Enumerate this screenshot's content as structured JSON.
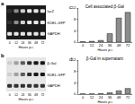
{
  "chart_data": [
    {
      "panel": "c",
      "type": "bar",
      "title": "Cell associated β-Gal",
      "x_label": "Hours p.i.",
      "categories": [
        "0",
        "12",
        "24",
        "36",
        "48",
        "72"
      ],
      "values": [
        0.2,
        0.3,
        0.6,
        3,
        8.5,
        10.5
      ],
      "color": "#8c8c8c",
      "ylim": [
        0,
        12
      ],
      "yticks": [
        0,
        4,
        8,
        12
      ]
    },
    {
      "panel": "d",
      "type": "bar",
      "title": "β-Gal in supernatant",
      "x_label": "Hours p.i.",
      "categories": [
        "0",
        "12",
        "24",
        "36",
        "48",
        "72"
      ],
      "values": [
        0.1,
        0.1,
        0.2,
        0.5,
        1.2,
        2
      ],
      "color": "#8c8c8c",
      "ylim": [
        0,
        12
      ],
      "yticks": [
        0,
        4,
        8,
        12
      ]
    }
  ],
  "gels": [
    {
      "panel": "a",
      "lane_label": "Hours p.i.",
      "lanes": [
        "0",
        "12",
        "24",
        "36",
        "48",
        "72"
      ],
      "rows": [
        {
          "label": "lacZ",
          "intensities": [
            0.1,
            0.5,
            0.8,
            0.9,
            0.9,
            0.9
          ]
        },
        {
          "label": "KDEL-GFP",
          "intensities": [
            0.1,
            0.5,
            0.8,
            0.9,
            0.9,
            0.9
          ]
        },
        {
          "label": "GAPDH",
          "intensities": [
            0.9,
            0.9,
            0.9,
            0.9,
            0.9,
            0.9
          ]
        }
      ]
    },
    {
      "panel": "b",
      "lane_label": "Hours p.i.",
      "lanes": [
        "0",
        "12",
        "24",
        "36",
        "48",
        "72"
      ],
      "rows": [
        {
          "label": "β-Gal",
          "intensities": [
            0.1,
            0.3,
            0.6,
            0.8,
            0.9,
            0.9
          ]
        },
        {
          "label": "KDEL-GFP",
          "intensities": [
            0.1,
            0.3,
            0.6,
            0.8,
            0.9,
            0.9
          ]
        },
        {
          "label": "GAPDH",
          "intensities": [
            0.8,
            0.8,
            0.8,
            0.8,
            0.8,
            0.8
          ]
        }
      ]
    }
  ]
}
